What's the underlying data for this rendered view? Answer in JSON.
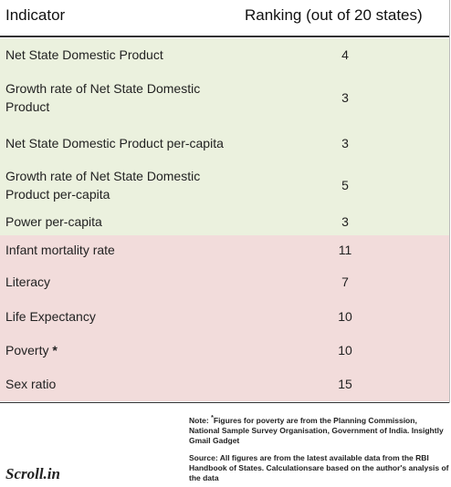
{
  "header": {
    "indicator": "Indicator",
    "ranking": "Ranking (out of 20 states)"
  },
  "table": {
    "rows": [
      {
        "indicator": "Net State Domestic Product",
        "rank": 4
      },
      {
        "indicator": "Growth rate of Net State Domestic Product",
        "rank": 3
      },
      {
        "indicator": "Net State Domestic Product per-capita",
        "rank": 3
      },
      {
        "indicator": "Growth rate of Net State Domestic Product per-capita",
        "rank": 5
      },
      {
        "indicator": "Power per-capita",
        "rank": 3
      },
      {
        "indicator": "Infant mortality rate",
        "rank": 11
      },
      {
        "indicator": "Literacy",
        "rank": 7
      },
      {
        "indicator": "Life Expectancy",
        "rank": 10
      },
      {
        "indicator": "Poverty",
        "note_mark": "*",
        "rank": 10
      },
      {
        "indicator": "Sex ratio",
        "rank": 15
      }
    ]
  },
  "notes": {
    "note_label": "Note:",
    "note_mark": "*",
    "note": "Figures for poverty are from the Planning Commission, National Sample Survey Organisation, Government of India. Insightly Gmail Gadget",
    "source": "Source: All figures are from the latest available  data from the RBI Handbook of States. Calculationsare based on the author's analysis of the data"
  },
  "logo": "Scroll.in"
}
